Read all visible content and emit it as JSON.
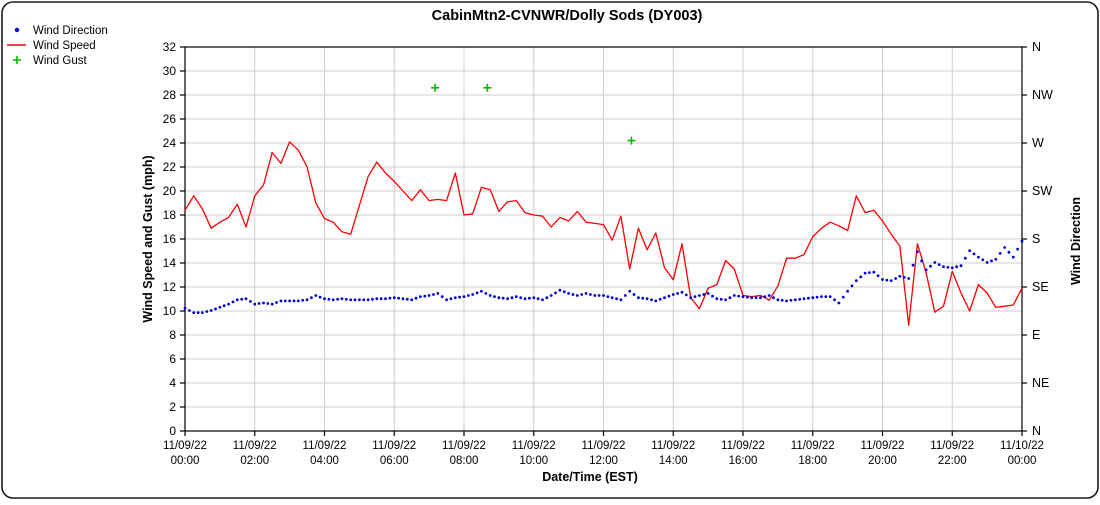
{
  "title": "CabinMtn2-CVNWR/Dolly Sods (DY003)",
  "legend": {
    "items": [
      {
        "label": "Wind Direction",
        "marker": "dot",
        "color": "#0000cc"
      },
      {
        "label": "Wind Speed",
        "marker": "line",
        "color": "#ff0000"
      },
      {
        "label": "Wind Gust",
        "marker": "plus",
        "color": "#00bb00"
      }
    ]
  },
  "chart_data": {
    "type": "line",
    "title": "CabinMtn2-CVNWR/Dolly Sods (DY003)",
    "xlabel": "Date/Time (EST)",
    "ylabel_left": "Wind Speed and Gust (mph)",
    "ylabel_right": "Wind Direction",
    "ylim_left": [
      0,
      32
    ],
    "ytick_step_left": 2,
    "right_axis_labels_bottom_to_top": [
      "N",
      "NE",
      "E",
      "SE",
      "S",
      "SW",
      "W",
      "NW",
      "N"
    ],
    "right_axis_degrees_per_left_unit": 11.25,
    "grid": true,
    "legend_position": "top-left-outside",
    "x_range_hours": [
      0,
      24
    ],
    "x_ticks": [
      {
        "date": "11/09/22",
        "time": "00:00"
      },
      {
        "date": "11/09/22",
        "time": "02:00"
      },
      {
        "date": "11/09/22",
        "time": "04:00"
      },
      {
        "date": "11/09/22",
        "time": "06:00"
      },
      {
        "date": "11/09/22",
        "time": "08:00"
      },
      {
        "date": "11/09/22",
        "time": "10:00"
      },
      {
        "date": "11/09/22",
        "time": "12:00"
      },
      {
        "date": "11/09/22",
        "time": "14:00"
      },
      {
        "date": "11/09/22",
        "time": "16:00"
      },
      {
        "date": "11/09/22",
        "time": "18:00"
      },
      {
        "date": "11/09/22",
        "time": "20:00"
      },
      {
        "date": "11/09/22",
        "time": "22:00"
      },
      {
        "date": "11/10/22",
        "time": "00:00"
      }
    ],
    "series": [
      {
        "name": "Wind Speed",
        "type": "line",
        "color": "#ff0000",
        "units": "mph",
        "x_start_hours": 0,
        "x_step_hours": 0.25,
        "values": [
          18.4,
          19.6,
          18.5,
          16.9,
          17.4,
          17.8,
          18.9,
          17.0,
          19.6,
          20.5,
          23.2,
          22.3,
          24.1,
          23.4,
          22.0,
          19.0,
          17.7,
          17.4,
          16.6,
          16.4,
          18.8,
          21.2,
          22.4,
          21.5,
          20.8,
          20.0,
          19.2,
          20.1,
          19.2,
          19.3,
          19.2,
          21.5,
          18.0,
          18.1,
          20.3,
          20.1,
          18.3,
          19.1,
          19.2,
          18.2,
          18.0,
          17.9,
          17.0,
          17.8,
          17.5,
          18.3,
          17.4,
          17.3,
          17.2,
          15.9,
          17.9,
          13.5,
          16.9,
          15.1,
          16.5,
          13.6,
          12.6,
          15.6,
          11.1,
          10.2,
          11.9,
          12.2,
          14.2,
          13.5,
          11.3,
          11.2,
          11.3,
          10.9,
          12.1,
          14.4,
          14.4,
          14.7,
          16.2,
          16.9,
          17.4,
          17.1,
          16.7,
          19.6,
          18.2,
          18.4,
          17.5,
          16.4,
          15.4,
          8.8,
          15.6,
          13.2,
          9.9,
          10.4,
          13.3,
          11.5,
          10.0,
          12.2,
          11.5,
          10.3,
          10.4,
          10.5,
          11.9
        ]
      },
      {
        "name": "Wind Direction",
        "type": "scatter",
        "marker": "dot",
        "color": "#0000cc",
        "units": "degrees",
        "x_start_hours": 0,
        "x_step_hours": 0.25,
        "values": [
          115,
          111,
          111,
          113,
          116,
          119,
          123,
          124,
          119,
          120,
          119,
          122,
          122,
          122,
          123,
          127,
          124,
          123,
          124,
          123,
          123,
          123,
          124,
          124,
          125,
          124,
          123,
          126,
          127,
          129,
          123,
          125,
          126,
          128,
          131,
          127,
          125,
          124,
          126,
          124,
          125,
          123,
          127,
          132,
          129,
          127,
          129,
          127,
          127,
          125,
          123,
          131,
          125,
          124,
          122,
          125,
          128,
          130,
          125,
          127,
          129,
          124,
          123,
          127,
          126,
          125,
          125,
          127,
          123,
          122,
          123,
          124,
          125,
          126,
          126,
          120,
          131,
          141,
          148,
          149,
          142,
          141,
          145,
          143,
          168,
          151,
          158,
          154,
          153,
          155,
          169,
          163,
          158,
          161,
          172,
          163,
          178
        ]
      },
      {
        "name": "Wind Gust",
        "type": "scatter",
        "marker": "plus",
        "color": "#00bb00",
        "units": "mph",
        "points": [
          {
            "x_hours": 7.17,
            "value": 28.6
          },
          {
            "x_hours": 8.67,
            "value": 28.6
          },
          {
            "x_hours": 12.8,
            "value": 24.2
          }
        ]
      }
    ]
  },
  "style": {
    "grid_color": "#cfcfcf",
    "axis_color": "#000000",
    "background": "#ffffff"
  }
}
